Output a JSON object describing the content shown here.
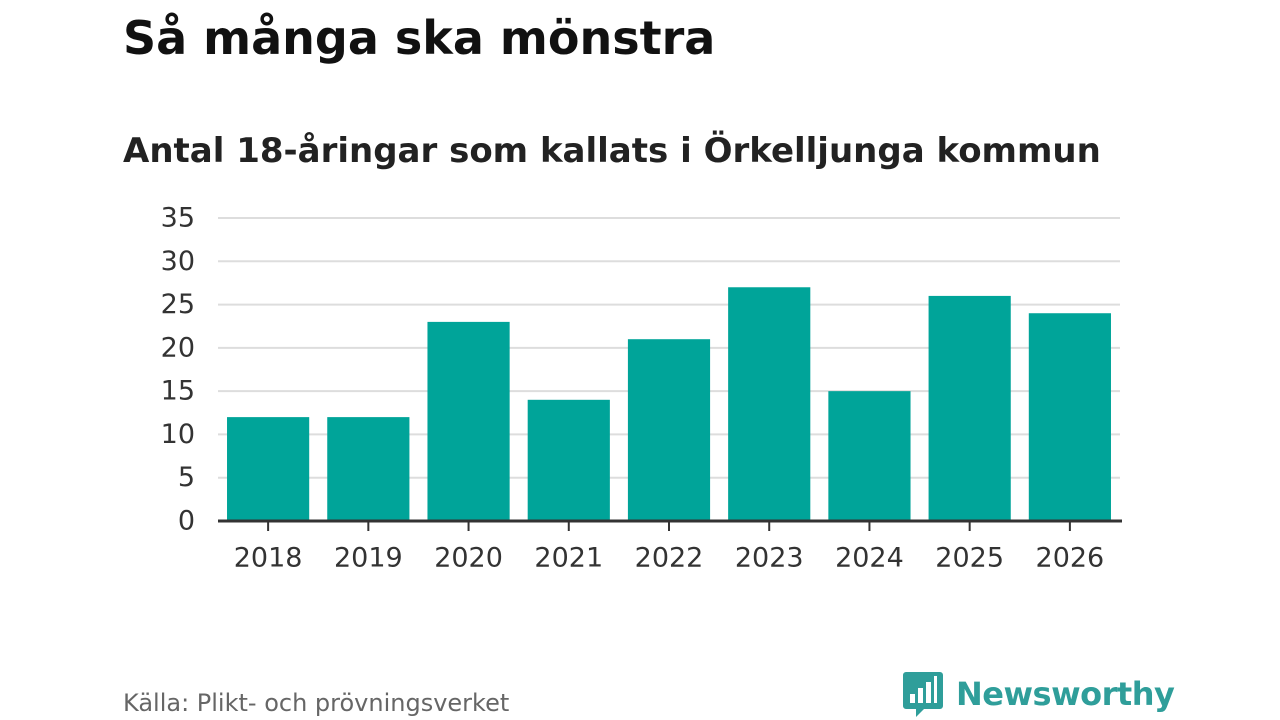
{
  "chart_data": {
    "type": "bar",
    "title": "Så många ska mönstra",
    "subtitle": "Antal 18-åringar som kallats i Örkelljunga kommun",
    "categories": [
      "2018",
      "2019",
      "2020",
      "2021",
      "2022",
      "2023",
      "2024",
      "2025",
      "2026"
    ],
    "values": [
      12,
      12,
      23,
      14,
      21,
      27,
      15,
      26,
      24
    ],
    "yticks": [
      "0",
      "5",
      "10",
      "15",
      "20",
      "25",
      "30",
      "35"
    ],
    "ylim": [
      0,
      35
    ],
    "xlabel": "",
    "ylabel": "",
    "grid": true,
    "bar_color": "#00a499"
  },
  "source": "Källa: Plikt- och prövningsverket",
  "brand": {
    "name": "Newsworthy",
    "icon": "newsworthy-logo-icon",
    "color": "#2f9e9a"
  }
}
